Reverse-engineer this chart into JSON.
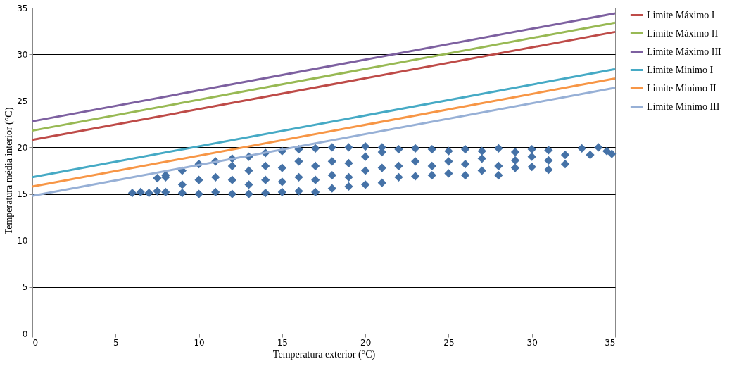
{
  "chart_data": {
    "type": "scatter",
    "xlabel": "Temperatura exterior (°C)",
    "ylabel": "Temperatura média interior (°C)",
    "xlim": [
      0,
      35
    ],
    "ylim": [
      0,
      35
    ],
    "xticks": [
      0,
      5,
      10,
      15,
      20,
      25,
      30,
      35
    ],
    "yticks": [
      0,
      5,
      10,
      15,
      20,
      25,
      30,
      35
    ],
    "grid": "y",
    "legend": "right",
    "series": [
      {
        "marker": "diamond",
        "color": "#4572a7",
        "x": [
          6,
          6.5,
          7,
          7.5,
          7.5,
          8,
          8,
          8,
          9,
          9,
          9,
          10,
          10,
          10,
          11,
          11,
          11,
          12,
          12,
          12,
          12,
          13,
          13,
          13,
          13,
          14,
          14,
          14,
          14,
          15,
          15,
          15,
          15,
          16,
          16,
          16,
          16,
          17,
          17,
          17,
          17,
          18,
          18,
          18,
          18,
          19,
          19,
          19,
          19,
          20,
          20,
          20,
          20,
          21,
          21,
          21,
          21,
          22,
          22,
          22,
          23,
          23,
          23,
          24,
          24,
          24,
          25,
          25,
          25,
          26,
          26,
          26,
          27,
          27,
          27,
          28,
          28,
          28,
          29,
          29,
          29,
          30,
          30,
          30,
          31,
          31,
          31,
          32,
          32,
          33,
          33.5,
          34,
          34.5,
          34.8
        ],
        "values": [
          15.1,
          15.2,
          15.1,
          15.3,
          16.7,
          15.2,
          16.8,
          17.0,
          15.1,
          16.0,
          17.5,
          15.0,
          16.5,
          18.2,
          15.2,
          16.8,
          18.5,
          15.0,
          16.5,
          18.0,
          18.8,
          15.0,
          16.0,
          17.5,
          19.0,
          15.1,
          16.5,
          18.0,
          19.4,
          15.2,
          16.3,
          17.8,
          19.6,
          15.3,
          16.8,
          18.5,
          19.8,
          15.2,
          16.5,
          18.0,
          19.9,
          15.6,
          17.0,
          18.5,
          20.0,
          15.8,
          16.8,
          18.3,
          20.0,
          16.0,
          17.5,
          19.0,
          20.1,
          16.2,
          17.8,
          19.5,
          20.0,
          16.8,
          18.0,
          19.8,
          16.9,
          18.5,
          19.9,
          17.0,
          18.0,
          19.8,
          17.2,
          18.5,
          19.6,
          17.0,
          18.2,
          19.8,
          17.5,
          18.8,
          19.6,
          17.0,
          18.0,
          19.9,
          17.8,
          18.6,
          19.5,
          17.9,
          19.0,
          19.8,
          17.6,
          18.6,
          19.7,
          18.2,
          19.2,
          19.9,
          19.2,
          20.0,
          19.6,
          19.3
        ]
      },
      {
        "type": "line",
        "marker": "none",
        "name": "Limite Máximo I",
        "color": "#be4b48",
        "x": [
          0,
          35
        ],
        "values": [
          20.8,
          32.4
        ]
      },
      {
        "type": "line",
        "marker": "none",
        "name": "Limite Máximo II",
        "color": "#98b954",
        "x": [
          0,
          35
        ],
        "values": [
          21.8,
          33.4
        ]
      },
      {
        "type": "line",
        "marker": "none",
        "name": "Limite Máximo III",
        "color": "#7d60a0",
        "x": [
          0,
          35
        ],
        "values": [
          22.8,
          34.4
        ]
      },
      {
        "type": "line",
        "marker": "none",
        "name": "Limite Minimo I",
        "color": "#46aac5",
        "x": [
          0,
          35
        ],
        "values": [
          16.8,
          28.4
        ]
      },
      {
        "type": "line",
        "marker": "none",
        "name": "Limite Minimo II",
        "color": "#f79646",
        "x": [
          0,
          35
        ],
        "values": [
          15.8,
          27.4
        ]
      },
      {
        "type": "line",
        "marker": "none",
        "name": "Limite Minimo III",
        "color": "#97b0d6",
        "x": [
          0,
          35
        ],
        "values": [
          14.8,
          26.4
        ]
      }
    ]
  }
}
